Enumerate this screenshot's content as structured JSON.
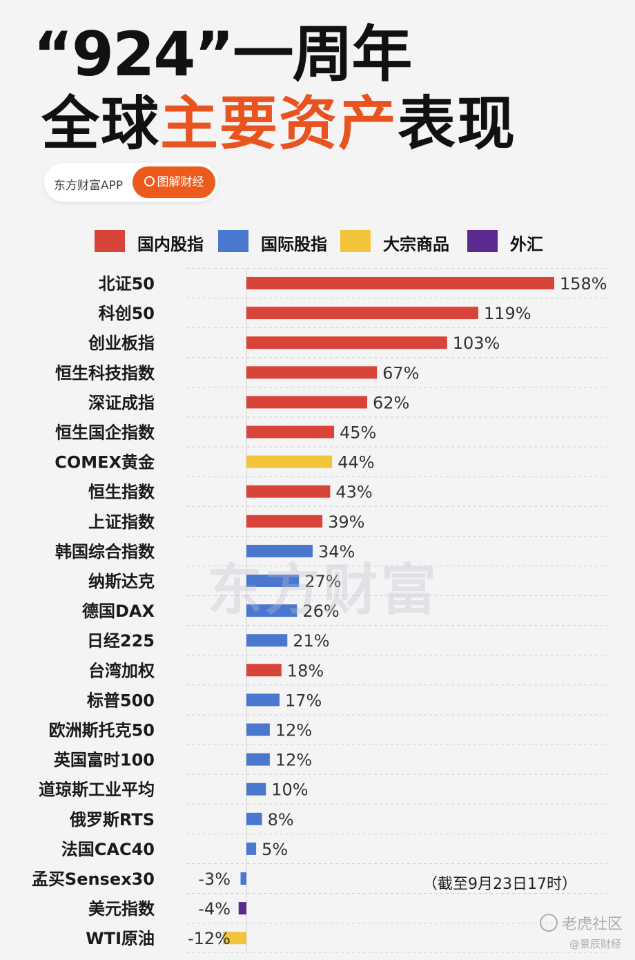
{
  "title": {
    "line1": "“924”一周年",
    "line2_pre": "全球",
    "line2_accent": "主要资产",
    "line2_post": "表现"
  },
  "brand": {
    "name": "东方财富APP",
    "button": "图解财经"
  },
  "watermark": "东方财富",
  "note": "（截至9月23日17时）",
  "corner_watermark": {
    "main": "老虎社区",
    "sub": "@景辰财经"
  },
  "colors": {
    "domestic": "#d9443a",
    "international": "#4a78cf",
    "commodity": "#f2c43a",
    "fx": "#5b2a91",
    "accent": "#e8531f"
  },
  "legend": [
    {
      "key": "domestic",
      "label": "国内股指"
    },
    {
      "key": "international",
      "label": "国际股指"
    },
    {
      "key": "commodity",
      "label": "大宗商品"
    },
    {
      "key": "fx",
      "label": "外汇"
    }
  ],
  "chart_data": {
    "type": "bar",
    "orientation": "horizontal",
    "unit": "%",
    "categories": [
      "北证50",
      "科创50",
      "创业板指",
      "恒生科技指数",
      "深证成指",
      "恒生国企指数",
      "COMEX黄金",
      "恒生指数",
      "上证指数",
      "韩国综合指数",
      "纳斯达克",
      "德国DAX",
      "日经225",
      "台湾加权",
      "标普500",
      "欧洲斯托克50",
      "英国富时100",
      "道琼斯工业平均",
      "俄罗斯RTS",
      "法国CAC40",
      "孟买Sensex30",
      "美元指数",
      "WTI原油"
    ],
    "values": [
      158,
      119,
      103,
      67,
      62,
      45,
      44,
      43,
      39,
      34,
      27,
      26,
      21,
      18,
      17,
      12,
      12,
      10,
      8,
      5,
      -3,
      -4,
      -12
    ],
    "labels": [
      "158%",
      "119%",
      "103%",
      "67%",
      "62%",
      "45%",
      "44%",
      "43%",
      "39%",
      "34%",
      "27%",
      "26%",
      "21%",
      "18%",
      "17%",
      "12%",
      "12%",
      "10%",
      "8%",
      "5%",
      "-3%",
      "-4%",
      "-12%"
    ],
    "groups": [
      "domestic",
      "domestic",
      "domestic",
      "domestic",
      "domestic",
      "domestic",
      "commodity",
      "domestic",
      "domestic",
      "international",
      "international",
      "international",
      "international",
      "domestic",
      "international",
      "international",
      "international",
      "international",
      "international",
      "international",
      "international",
      "fx",
      "commodity"
    ],
    "grid": "dashed horizontal",
    "legend_position": "top"
  }
}
